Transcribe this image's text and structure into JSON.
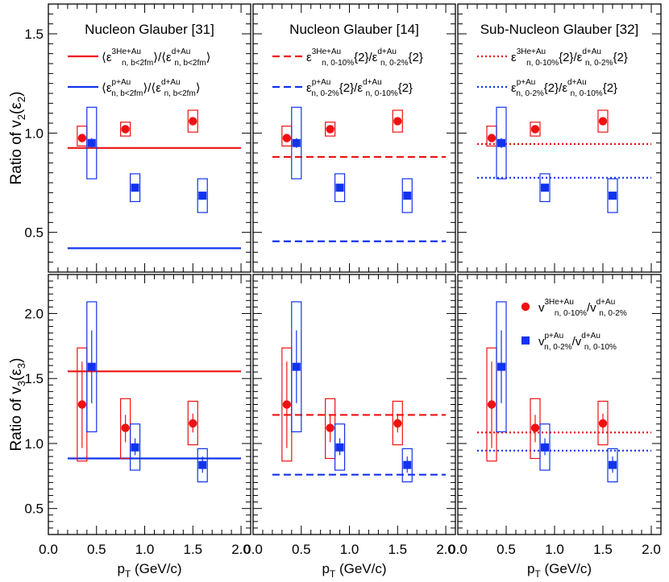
{
  "colors": {
    "red": "#ee1111",
    "blue": "#1133ee",
    "axis": "#000000"
  },
  "axes": {
    "xlabel": "p_T (GeV/c)",
    "xlabel_main": "p",
    "xlabel_sub": "T",
    "xlabel_unit": " (GeV/c)",
    "xlim": [
      0.0,
      2.1
    ],
    "xticks": [
      "0.0",
      "0.5",
      "1.0",
      "1.5",
      "2.0"
    ],
    "ylabel_top_parts": [
      "Ratio of v",
      "2",
      "(ε",
      "2",
      ")"
    ],
    "ylabel_bottom_parts": [
      "Ratio of v",
      "3",
      "(ε",
      "3",
      ")"
    ],
    "ylim_top": [
      0.3,
      1.65
    ],
    "ylim_bottom": [
      0.3,
      2.3
    ],
    "yticks_top": [
      "0.5",
      "1.0",
      "1.5"
    ],
    "yticks_bottom": [
      "0.5",
      "1.0",
      "1.5",
      "2.0"
    ]
  },
  "titles": [
    "Nucleon Glauber [31]",
    "Nucleon Glauber [14]",
    "Sub-Nucleon Glauber [32]"
  ],
  "legends": {
    "col1": [
      {
        "pre": "⟨ε",
        "sup": "3He+Au",
        "sub": "n, b<2fm",
        "mid": "⟩/⟨ε",
        "sup2": "d+Au",
        "sub2": "n, b<2fm",
        "post": "⟩"
      },
      {
        "pre": "⟨ε",
        "sup": "p+Au",
        "sub": "n, b<2fm",
        "mid": "⟩/⟨ε",
        "sup2": "d+Au",
        "sub2": "n, b<2fm",
        "post": "⟩"
      }
    ],
    "col2": [
      {
        "pre": "ε",
        "sup": "3He+Au",
        "sub": "n, 0-10%",
        "mid": "{2}/ε",
        "sup2": "d+Au",
        "sub2": "n, 0-2%",
        "post": "{2}"
      },
      {
        "pre": "ε",
        "sup": "p+Au",
        "sub": "n, 0-2%",
        "mid": "{2}/ε",
        "sup2": "d+Au",
        "sub2": "n, 0-10%",
        "post": "{2}"
      }
    ],
    "col3": [
      {
        "pre": "ε",
        "sup": "3He+Au",
        "sub": "n, 0-10%",
        "mid": "{2}/ε",
        "sup2": "d+Au",
        "sub2": "n, 0-2%",
        "post": "{2}"
      },
      {
        "pre": "ε",
        "sup": "p+Au",
        "sub": "n, 0-2%",
        "mid": "{2}/ε",
        "sup2": "d+Au",
        "sub2": "n, 0-10%",
        "post": "{2}"
      }
    ],
    "data": [
      {
        "pre": "v",
        "sup": "3He+Au",
        "sub": "n, 0-10%",
        "mid": "/v",
        "sup2": "d+Au",
        "sub2": "n, 0-2%",
        "post": ""
      },
      {
        "pre": "v",
        "sup": "p+Au",
        "sub": "n, 0-2%",
        "mid": "/v",
        "sup2": "d+Au",
        "sub2": "n, 0-10%",
        "post": ""
      }
    ]
  },
  "chart_data": {
    "type": "scatter",
    "layout": "2 rows x 3 columns, shared axes",
    "data_series": [
      {
        "name": "3He+Au / d+Au",
        "color": "red",
        "marker": "circle",
        "v2": {
          "x": [
            0.35,
            0.8,
            1.5
          ],
          "y": [
            0.975,
            1.02,
            1.06
          ],
          "sys": [
            [
              0.935,
              1.035
            ],
            [
              0.985,
              1.055
            ],
            [
              1.005,
              1.115
            ]
          ],
          "stat": [
            [
              0.955,
              0.995
            ],
            [
              1.005,
              1.035
            ],
            [
              1.045,
              1.075
            ]
          ]
        },
        "v3": {
          "x": [
            0.35,
            0.8,
            1.5
          ],
          "y": [
            1.3,
            1.12,
            1.155
          ],
          "sys": [
            [
              0.865,
              1.735
            ],
            [
              0.885,
              1.345
            ],
            [
              0.99,
              1.325
            ]
          ],
          "stat": [
            [
              0.965,
              1.63
            ],
            [
              1.01,
              1.22
            ],
            [
              1.085,
              1.23
            ]
          ]
        }
      },
      {
        "name": "p+Au / d+Au",
        "color": "blue",
        "marker": "square",
        "v2": {
          "x": [
            0.45,
            0.9,
            1.6
          ],
          "y": [
            0.95,
            0.725,
            0.685
          ],
          "sys": [
            [
              0.77,
              1.13
            ],
            [
              0.655,
              0.795
            ],
            [
              0.6,
              0.77
            ]
          ],
          "stat": [
            [
              0.925,
              0.975
            ],
            [
              0.71,
              0.74
            ],
            [
              0.665,
              0.705
            ]
          ]
        },
        "v3": {
          "x": [
            0.45,
            0.9,
            1.6
          ],
          "y": [
            1.59,
            0.97,
            0.835
          ],
          "sys": [
            [
              1.09,
              2.09
            ],
            [
              0.795,
              1.15
            ],
            [
              0.705,
              0.96
            ]
          ],
          "stat": [
            [
              1.31,
              1.87
            ],
            [
              0.91,
              1.04
            ],
            [
              0.775,
              0.9
            ]
          ]
        }
      }
    ],
    "model_lines": [
      {
        "panel": "col1",
        "style": "solid",
        "v2": {
          "red": 0.925,
          "blue": 0.42
        },
        "v3": {
          "red": 1.555,
          "blue": 0.885
        }
      },
      {
        "panel": "col2",
        "style": "dashed",
        "v2": {
          "red": 0.88,
          "blue": 0.455
        },
        "v3": {
          "red": 1.22,
          "blue": 0.76
        }
      },
      {
        "panel": "col3",
        "style": "dotted",
        "v2": {
          "red": 0.945,
          "blue": 0.775
        },
        "v3": {
          "red": 1.085,
          "blue": 0.945
        }
      }
    ],
    "line_x_range": [
      0.2,
      2.0
    ]
  }
}
